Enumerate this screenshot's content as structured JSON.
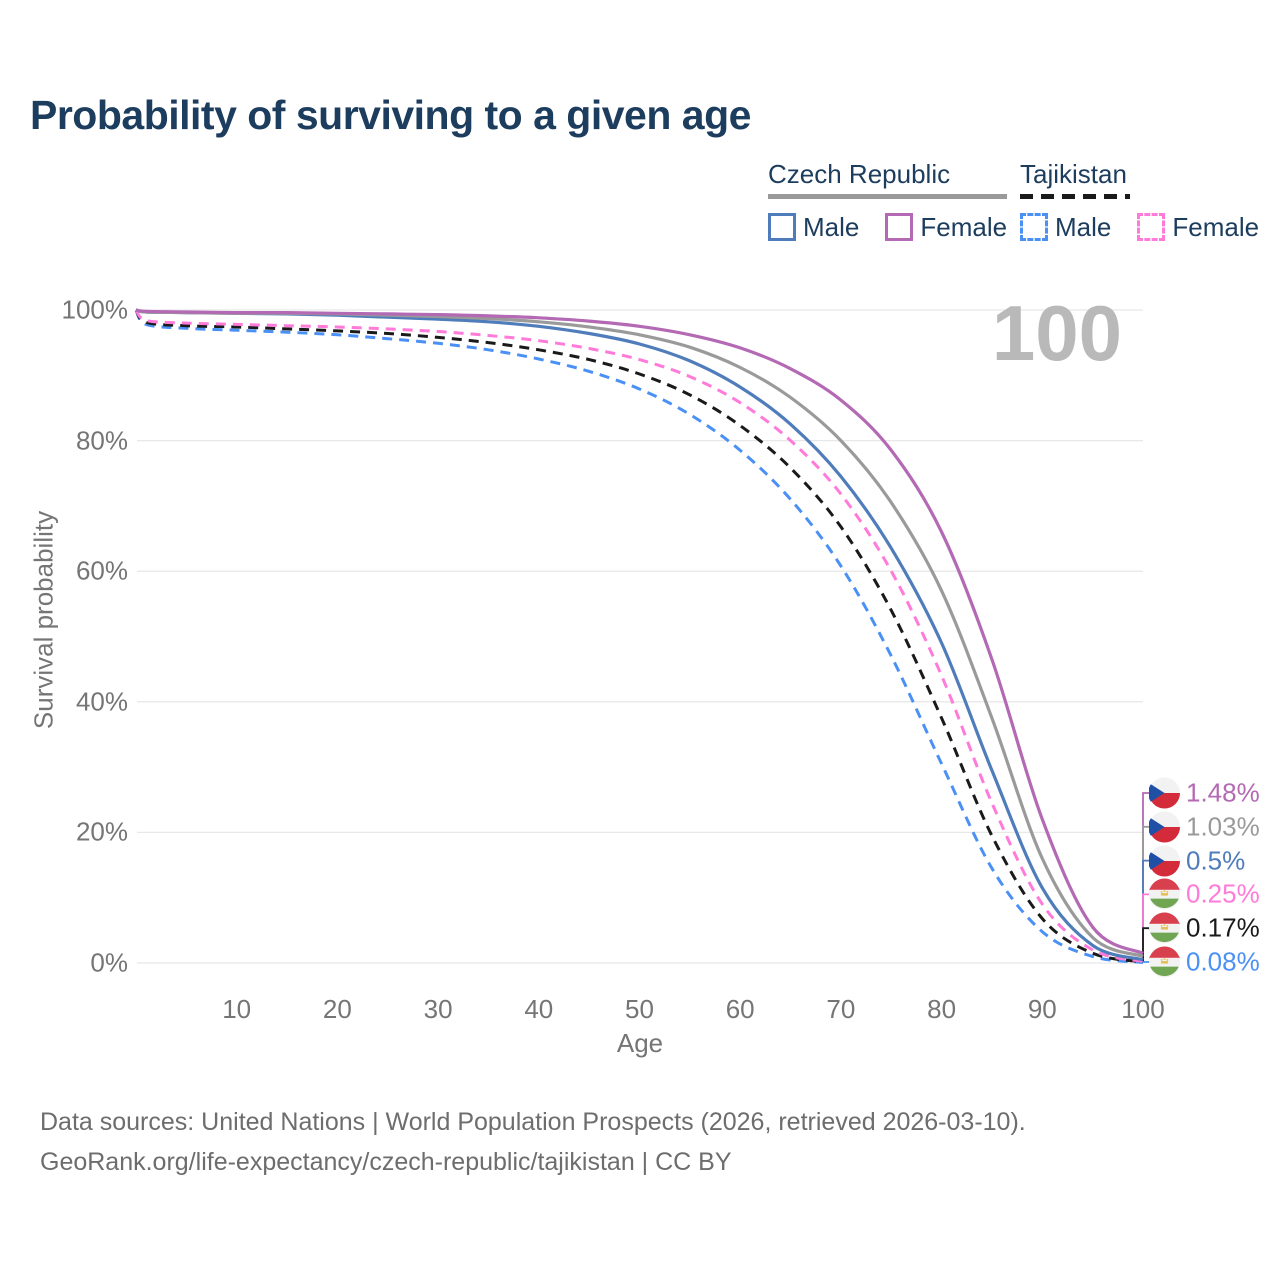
{
  "page": {
    "title": "Probability of surviving to a given age",
    "age_indicator": "100",
    "source_line1": "Data sources: United Nations | World Population Prospects (2026, retrieved 2026-03-10).",
    "source_line2": "GeoRank.org/life-expectancy/czech-republic/tajikistan | CC BY"
  },
  "legend": {
    "groups": [
      {
        "label": "Czech Republic",
        "line_style": "solid",
        "underline_color": "#9a9a9a",
        "items": [
          {
            "label": "Male",
            "color": "#4f7cba"
          },
          {
            "label": "Female",
            "color": "#b369b3"
          }
        ]
      },
      {
        "label": "Tajikistan",
        "line_style": "dashed",
        "underline_color": "#1a1a1a",
        "items": [
          {
            "label": "Male",
            "color": "#4a90f5"
          },
          {
            "label": "Female",
            "color": "#ff7ad9"
          }
        ]
      }
    ]
  },
  "chart_data": {
    "type": "line",
    "title": "Probability of surviving to a given age",
    "xlabel": "Age",
    "ylabel": "Survival probability",
    "xlim": [
      0,
      100
    ],
    "ylim": [
      0,
      100
    ],
    "grid": "horizontal-only",
    "gridline_color": "#e8e8e8",
    "x_ticks": [
      10,
      20,
      30,
      40,
      50,
      60,
      70,
      80,
      90,
      100
    ],
    "y_ticks": [
      0,
      20,
      40,
      60,
      80,
      100
    ],
    "y_tick_suffix": "%",
    "x": [
      0,
      1,
      5,
      10,
      15,
      20,
      25,
      30,
      35,
      40,
      45,
      50,
      55,
      60,
      65,
      70,
      75,
      80,
      85,
      90,
      95,
      100
    ],
    "series": [
      {
        "name": "Tajikistan Male",
        "country": "Tajikistan",
        "sex": "Male",
        "color": "#4a90f5",
        "dashed": true,
        "values": [
          100,
          97.8,
          97.2,
          96.9,
          96.6,
          96.2,
          95.6,
          94.9,
          93.9,
          92.5,
          90.6,
          87.9,
          84.0,
          78.5,
          71.0,
          60.8,
          47.0,
          30.5,
          14.5,
          4.8,
          1.0,
          0.08
        ]
      },
      {
        "name": "Tajikistan Both sexes",
        "country": "Tajikistan",
        "sex": "Both",
        "color": "#1a1a1a",
        "dashed": true,
        "values": [
          100,
          98.1,
          97.6,
          97.4,
          97.1,
          96.8,
          96.4,
          95.8,
          95.0,
          93.9,
          92.4,
          90.2,
          87.0,
          82.3,
          75.8,
          66.8,
          54.0,
          37.5,
          19.5,
          6.8,
          1.5,
          0.17
        ]
      },
      {
        "name": "Tajikistan Female",
        "country": "Tajikistan",
        "sex": "Female",
        "color": "#ff7ad9",
        "dashed": true,
        "values": [
          100,
          98.4,
          98.0,
          97.8,
          97.6,
          97.4,
          97.1,
          96.7,
          96.1,
          95.3,
          94.1,
          92.4,
          89.8,
          85.8,
          80.0,
          71.8,
          60.0,
          44.0,
          24.5,
          9.0,
          2.0,
          0.25
        ]
      },
      {
        "name": "Czech Republic Male",
        "country": "Czech Republic",
        "sex": "Male",
        "color": "#4f7cba",
        "dashed": false,
        "values": [
          100,
          99.7,
          99.6,
          99.5,
          99.4,
          99.2,
          98.9,
          98.6,
          98.2,
          97.5,
          96.4,
          94.8,
          92.2,
          88.2,
          82.5,
          74.5,
          63.5,
          49.0,
          29.5,
          11.5,
          2.7,
          0.5
        ]
      },
      {
        "name": "Czech Republic Both sexes",
        "country": "Czech Republic",
        "sex": "Both",
        "color": "#9a9a9a",
        "dashed": false,
        "values": [
          100,
          99.7,
          99.6,
          99.5,
          99.5,
          99.4,
          99.2,
          99.0,
          98.7,
          98.2,
          97.4,
          96.2,
          94.3,
          91.2,
          86.6,
          80.0,
          70.5,
          57.0,
          37.5,
          16.0,
          3.9,
          1.03
        ]
      },
      {
        "name": "Czech Republic Female",
        "country": "Czech Republic",
        "sex": "Female",
        "color": "#b369b3",
        "dashed": false,
        "values": [
          100,
          99.8,
          99.7,
          99.6,
          99.6,
          99.5,
          99.4,
          99.3,
          99.1,
          98.8,
          98.3,
          97.5,
          96.2,
          94.2,
          91.0,
          86.2,
          78.5,
          66.0,
          46.5,
          22.0,
          5.5,
          1.48
        ]
      }
    ],
    "end_labels": [
      {
        "text": "1.48%",
        "color": "#b369b3",
        "flag": "czech-flag",
        "series": "Czech Republic Female"
      },
      {
        "text": "1.03%",
        "color": "#9a9a9a",
        "flag": "czech-flag",
        "series": "Czech Republic Both sexes"
      },
      {
        "text": "0.5%",
        "color": "#4f7cba",
        "flag": "czech-flag",
        "series": "Czech Republic Male"
      },
      {
        "text": "0.25%",
        "color": "#ff7ad9",
        "flag": "tajikistan-flag",
        "series": "Tajikistan Female"
      },
      {
        "text": "0.17%",
        "color": "#1a1a1a",
        "flag": "tajikistan-flag",
        "series": "Tajikistan Both sexes"
      },
      {
        "text": "0.08%",
        "color": "#4a90f5",
        "flag": "tajikistan-flag",
        "series": "Tajikistan Male"
      }
    ],
    "legend_position": "top-right"
  },
  "colors": {
    "title": "#1d3d5e",
    "tick_text": "#757575",
    "gridline": "#e8e8e8",
    "watermark": "#b9b9b9",
    "source_text": "#6d6d6d"
  }
}
